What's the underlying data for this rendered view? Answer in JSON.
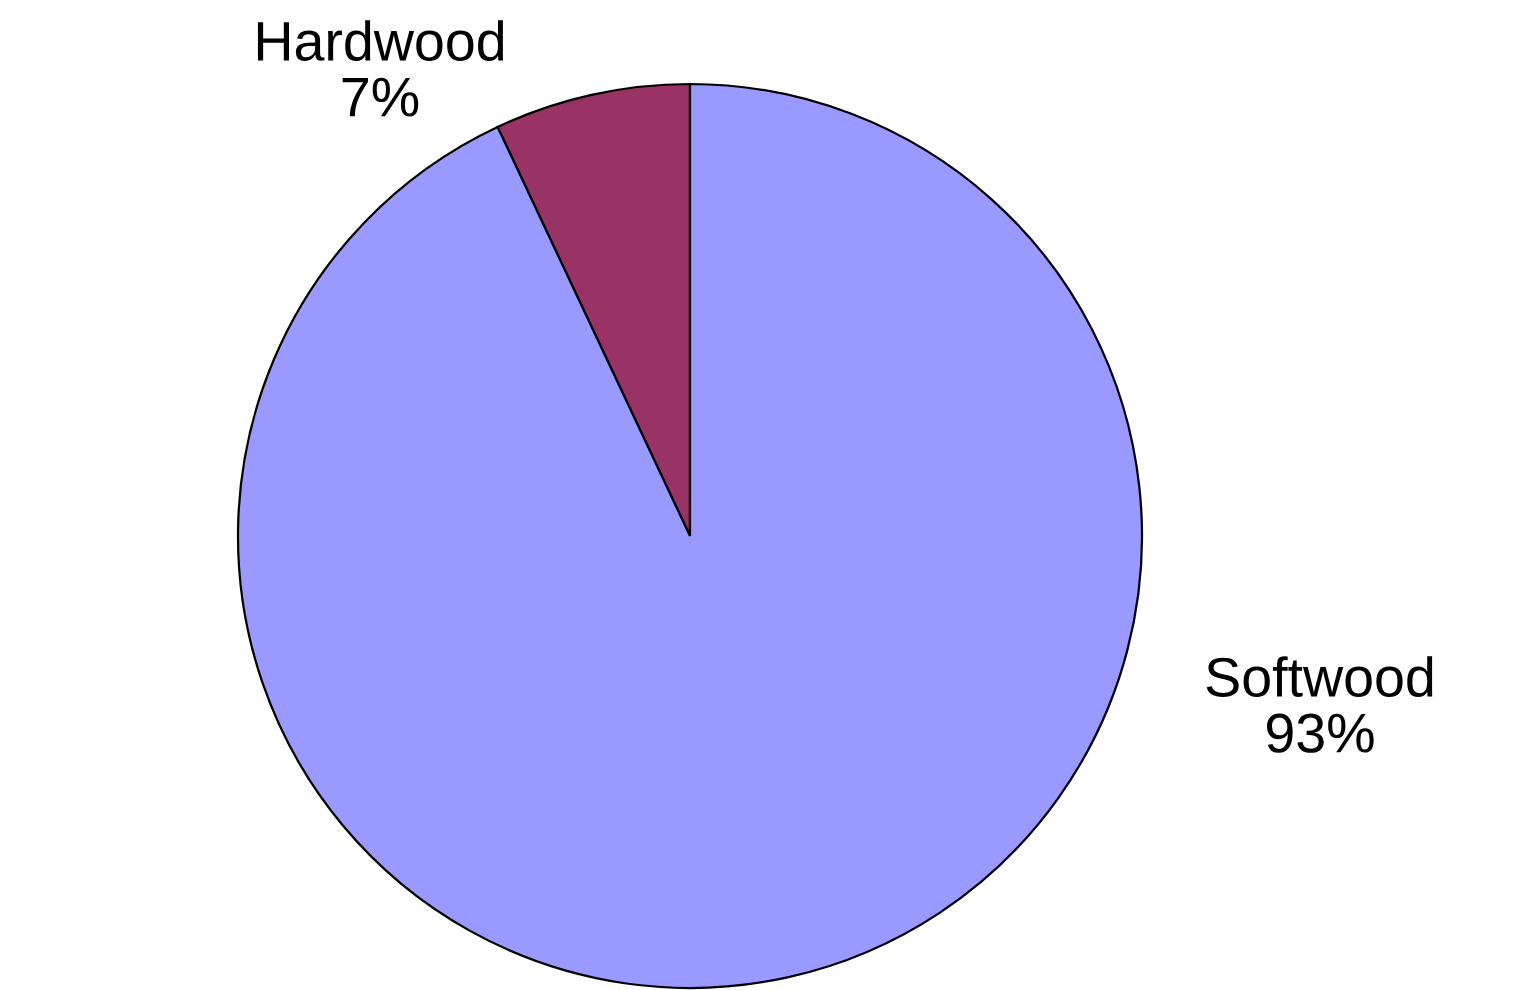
{
  "chart_data": {
    "type": "pie",
    "categories": [
      "Hardwood",
      "Softwood"
    ],
    "values": [
      7,
      93
    ],
    "colors": [
      "#993366",
      "#9999ff"
    ],
    "value_labels": [
      "7%",
      "93%"
    ]
  }
}
